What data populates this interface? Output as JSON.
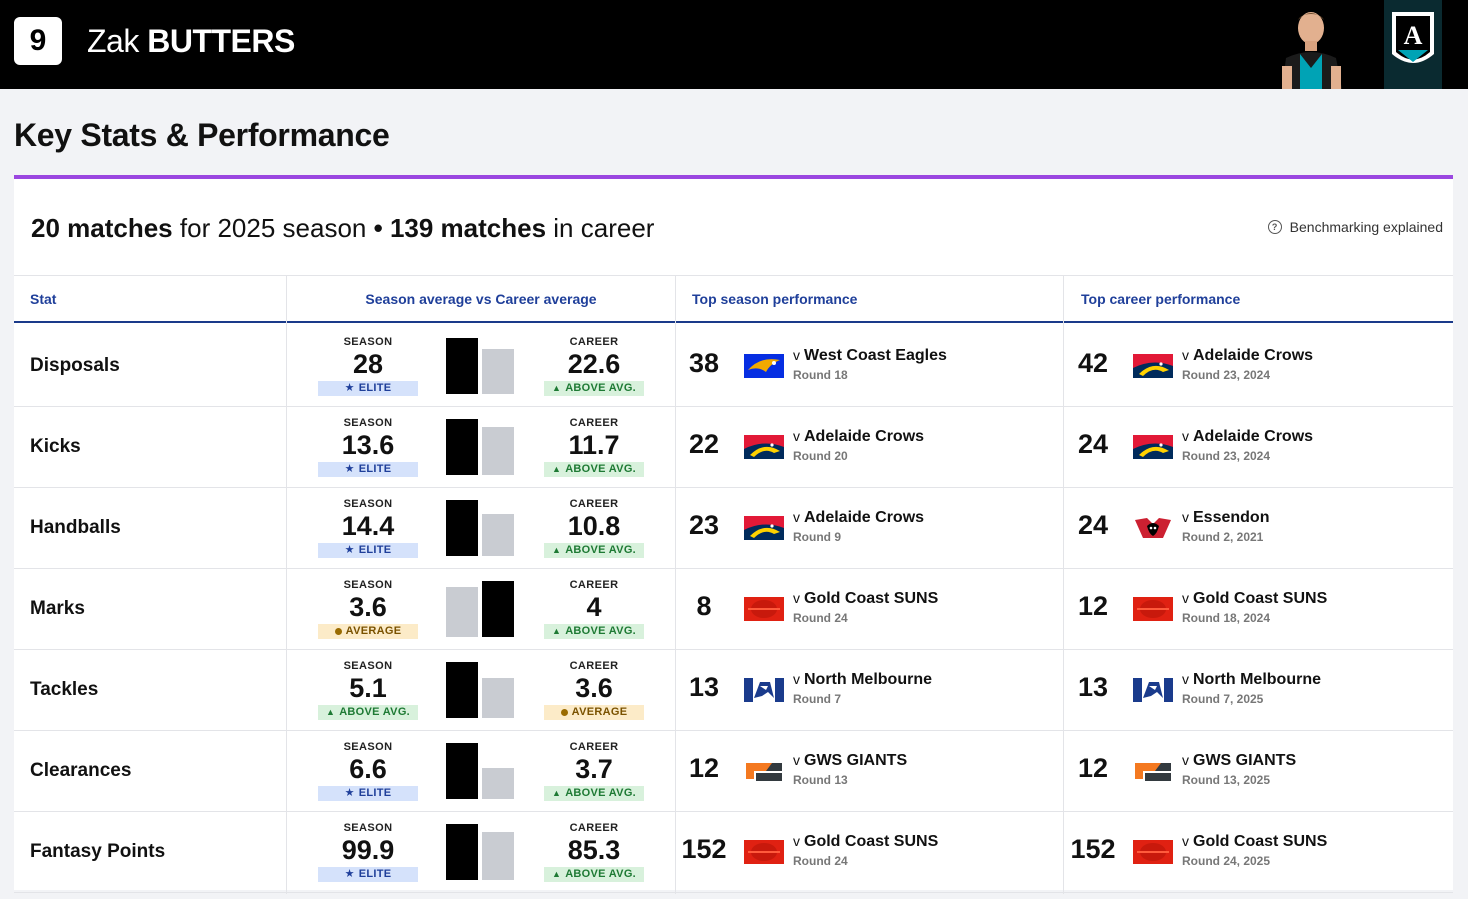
{
  "player": {
    "number": "9",
    "first_name": "Zak",
    "last_name": "BUTTERS"
  },
  "page_title": "Key Stats & Performance",
  "summary": {
    "season_matches": "20 matches",
    "season_text": "for 2025 season",
    "separator": "•",
    "career_matches": "139 matches",
    "career_text": "in career"
  },
  "benchmark_link": "Benchmarking explained",
  "columns": {
    "stat": "Stat",
    "avg": "Season average vs Career average",
    "top_season": "Top season performance",
    "top_career": "Top career performance"
  },
  "labels": {
    "season": "SEASON",
    "career": "CAREER",
    "versus": "v"
  },
  "colors": {
    "accent": "#9b47e0",
    "header_text": "#1f3f9a",
    "bar_high": "#000000",
    "bar_low": "#c9ccd2"
  },
  "rows": [
    {
      "stat": "Disposals",
      "season": {
        "value": "28",
        "badge": "ELITE",
        "badge_type": "elite"
      },
      "career": {
        "value": "22.6",
        "badge": "ABOVE AVG.",
        "badge_type": "above"
      },
      "top_season": {
        "value": "38",
        "opponent": "West Coast Eagles",
        "round": "Round 18",
        "logo": "west-coast-eagles-logo"
      },
      "top_career": {
        "value": "42",
        "opponent": "Adelaide Crows",
        "round": "Round 23, 2024",
        "logo": "adelaide-crows-logo"
      }
    },
    {
      "stat": "Kicks",
      "season": {
        "value": "13.6",
        "badge": "ELITE",
        "badge_type": "elite"
      },
      "career": {
        "value": "11.7",
        "badge": "ABOVE AVG.",
        "badge_type": "above"
      },
      "top_season": {
        "value": "22",
        "opponent": "Adelaide Crows",
        "round": "Round 20",
        "logo": "adelaide-crows-logo"
      },
      "top_career": {
        "value": "24",
        "opponent": "Adelaide Crows",
        "round": "Round 23, 2024",
        "logo": "adelaide-crows-logo"
      }
    },
    {
      "stat": "Handballs",
      "season": {
        "value": "14.4",
        "badge": "ELITE",
        "badge_type": "elite"
      },
      "career": {
        "value": "10.8",
        "badge": "ABOVE AVG.",
        "badge_type": "above"
      },
      "top_season": {
        "value": "23",
        "opponent": "Adelaide Crows",
        "round": "Round 9",
        "logo": "adelaide-crows-logo"
      },
      "top_career": {
        "value": "24",
        "opponent": "Essendon",
        "round": "Round 2, 2021",
        "logo": "essendon-logo"
      }
    },
    {
      "stat": "Marks",
      "season": {
        "value": "3.6",
        "badge": "AVERAGE",
        "badge_type": "avg"
      },
      "career": {
        "value": "4",
        "badge": "ABOVE AVG.",
        "badge_type": "above"
      },
      "top_season": {
        "value": "8",
        "opponent": "Gold Coast SUNS",
        "round": "Round 24",
        "logo": "gold-coast-suns-logo"
      },
      "top_career": {
        "value": "12",
        "opponent": "Gold Coast SUNS",
        "round": "Round 18, 2024",
        "logo": "gold-coast-suns-logo"
      }
    },
    {
      "stat": "Tackles",
      "season": {
        "value": "5.1",
        "badge": "ABOVE AVG.",
        "badge_type": "above"
      },
      "career": {
        "value": "3.6",
        "badge": "AVERAGE",
        "badge_type": "avg"
      },
      "top_season": {
        "value": "13",
        "opponent": "North Melbourne",
        "round": "Round 7",
        "logo": "north-melbourne-logo"
      },
      "top_career": {
        "value": "13",
        "opponent": "North Melbourne",
        "round": "Round 7, 2025",
        "logo": "north-melbourne-logo"
      }
    },
    {
      "stat": "Clearances",
      "season": {
        "value": "6.6",
        "badge": "ELITE",
        "badge_type": "elite"
      },
      "career": {
        "value": "3.7",
        "badge": "ABOVE AVG.",
        "badge_type": "above"
      },
      "top_season": {
        "value": "12",
        "opponent": "GWS GIANTS",
        "round": "Round 13",
        "logo": "gws-giants-logo"
      },
      "top_career": {
        "value": "12",
        "opponent": "GWS GIANTS",
        "round": "Round 13, 2025",
        "logo": "gws-giants-logo"
      }
    },
    {
      "stat": "Fantasy Points",
      "season": {
        "value": "99.9",
        "badge": "ELITE",
        "badge_type": "elite"
      },
      "career": {
        "value": "85.3",
        "badge": "ABOVE AVG.",
        "badge_type": "above"
      },
      "top_season": {
        "value": "152",
        "opponent": "Gold Coast SUNS",
        "round": "Round 24",
        "logo": "gold-coast-suns-logo"
      },
      "top_career": {
        "value": "152",
        "opponent": "Gold Coast SUNS",
        "round": "Round 24, 2025",
        "logo": "gold-coast-suns-logo"
      }
    }
  ]
}
